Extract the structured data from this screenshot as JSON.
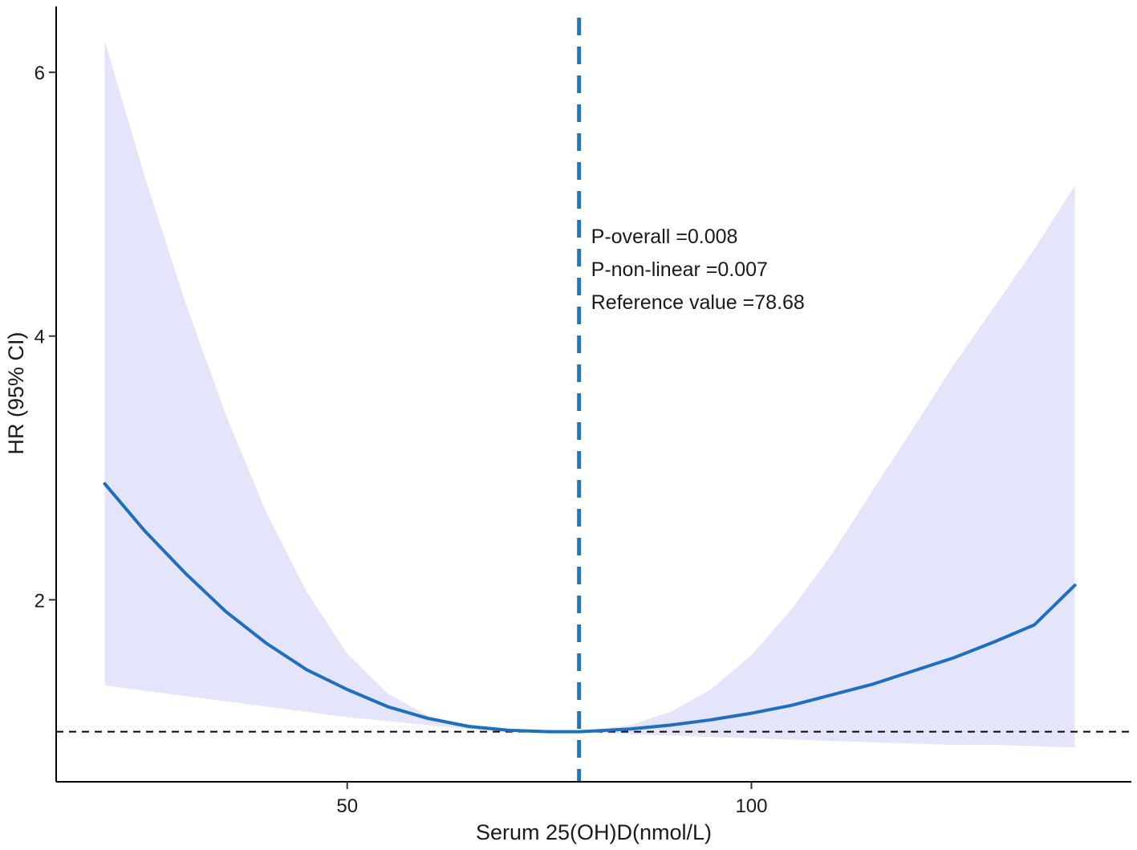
{
  "chart_data": {
    "type": "line",
    "title": "",
    "xlabel": "Serum 25(OH)D(nmol/L)",
    "ylabel": "HR (95% CI)",
    "xlim": [
      14,
      147
    ],
    "ylim": [
      0.62,
      6.5
    ],
    "x_ticks": [
      50,
      100
    ],
    "y_ticks": [
      2,
      4,
      6
    ],
    "grid": false,
    "legend": "none",
    "reference_line_y": 1.0,
    "reference_value_x": 78.68,
    "annotations": [
      "P-overall =0.008",
      "P-non-linear =0.007",
      "Reference value =78.68"
    ],
    "colors": {
      "curve": "#1f6fc0",
      "ribbon": "#e4e4fa",
      "vline": "#1a78c2",
      "hline": "#000000"
    },
    "series": [
      {
        "role": "estimate",
        "x": [
          20,
          25,
          30,
          35,
          40,
          45,
          50,
          55,
          60,
          65,
          70,
          75,
          78.68,
          85,
          90,
          95,
          100,
          105,
          110,
          115,
          120,
          125,
          130,
          135,
          140
        ],
        "y": [
          2.88,
          2.52,
          2.2,
          1.91,
          1.67,
          1.47,
          1.32,
          1.19,
          1.1,
          1.04,
          1.01,
          1.0,
          1.0,
          1.02,
          1.05,
          1.09,
          1.14,
          1.2,
          1.28,
          1.36,
          1.46,
          1.56,
          1.68,
          1.81,
          2.11
        ],
        "lower": [
          1.35,
          1.31,
          1.27,
          1.23,
          1.19,
          1.15,
          1.11,
          1.08,
          1.05,
          1.02,
          1.0,
          1.0,
          1.0,
          0.98,
          0.97,
          0.96,
          0.95,
          0.94,
          0.93,
          0.92,
          0.91,
          0.9,
          0.9,
          0.89,
          0.88
        ],
        "upper": [
          6.24,
          5.2,
          4.25,
          3.4,
          2.66,
          2.06,
          1.59,
          1.29,
          1.12,
          1.05,
          1.02,
          1.0,
          1.0,
          1.05,
          1.15,
          1.32,
          1.58,
          1.93,
          2.35,
          2.83,
          3.3,
          3.78,
          4.22,
          4.66,
          5.14
        ]
      }
    ]
  }
}
